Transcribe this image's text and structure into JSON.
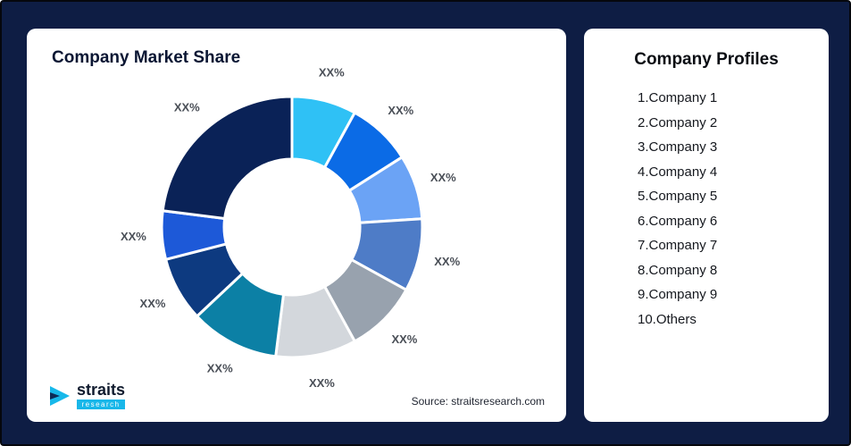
{
  "colors": {
    "frame_bg": "#0e1d44",
    "card_bg": "#ffffff",
    "accent_cyan": "#19b7e9",
    "title_navy": "#0a1633"
  },
  "left_card": {
    "title": "Company Market Share",
    "source": "Source: straitsresearch.com",
    "logo": {
      "icon": "straits-arrow-icon",
      "name": "straits",
      "sub": "research"
    }
  },
  "right_card": {
    "title": "Company Profiles",
    "items": [
      "1.Company 1",
      "2.Company 2",
      "3.Company 3",
      "4.Company 4",
      "5.Company 5",
      "6.Company 6",
      "7.Company 7",
      "8.Company 8",
      "9.Company 9",
      "10.Others"
    ]
  },
  "chart_data": {
    "type": "pie",
    "donut": true,
    "title": "Company Market Share",
    "value_note": "percentages shown as XX% placeholders; numeric values estimated from arc angles",
    "slices": [
      {
        "name": "Company 1",
        "label": "XX%",
        "value": 8,
        "color": "#2fc1f5"
      },
      {
        "name": "Company 2",
        "label": "XX%",
        "value": 8,
        "color": "#0b6be6"
      },
      {
        "name": "Company 3",
        "label": "XX%",
        "value": 8,
        "color": "#6ba3f5"
      },
      {
        "name": "Company 4",
        "label": "XX%",
        "value": 9,
        "color": "#4e7cc7"
      },
      {
        "name": "Company 5",
        "label": "XX%",
        "value": 9,
        "color": "#98a2ae"
      },
      {
        "name": "Company 6",
        "label": "XX%",
        "value": 10,
        "color": "#d3d7dc"
      },
      {
        "name": "Company 7",
        "label": "XX%",
        "value": 11,
        "color": "#0c80a5"
      },
      {
        "name": "Company 8",
        "label": "XX%",
        "value": 8,
        "color": "#0d3a80"
      },
      {
        "name": "Company 9",
        "label": "XX%",
        "value": 6,
        "color": "#1d59d8"
      },
      {
        "name": "Others",
        "label": "XX%",
        "value": 23,
        "color": "#0a2257"
      }
    ],
    "legend_position": "none",
    "grid": false
  }
}
